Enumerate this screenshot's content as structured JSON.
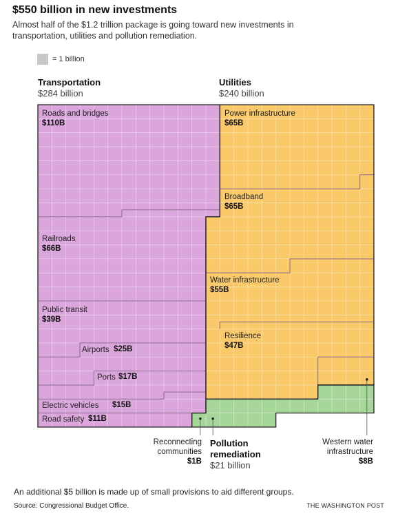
{
  "title": "$550 billion in new investments",
  "subtitle": "Almost half of the $1.2 trillion package is going toward new investments in transportation, utilities and pollution remediation.",
  "legend": {
    "label": "= 1 billion"
  },
  "categories": {
    "transportation": {
      "name": "Transportation",
      "total": "$284 billion"
    },
    "utilities": {
      "name": "Utilities",
      "total": "$240 billion"
    },
    "pollution": {
      "name": "Pollution remediation",
      "name_line1": "Pollution",
      "name_line2": "remediation",
      "total": "$21 billion"
    }
  },
  "colors": {
    "transportation": "#dba6dc",
    "utilities": "#f9c96a",
    "pollution": "#a7d69a",
    "grid": "#ffffff",
    "divider": "#8a6a8a",
    "outline": "#222222",
    "legend_swatch": "#c8c8c8"
  },
  "chart_data": {
    "type": "waffle",
    "unit": "$1 billion per square",
    "groups": [
      {
        "category": "Transportation",
        "total": 284,
        "items": [
          {
            "label": "Roads and bridges",
            "value": 110,
            "value_label": "$110B"
          },
          {
            "label": "Railroads",
            "value": 66,
            "value_label": "$66B"
          },
          {
            "label": "Public transit",
            "value": 39,
            "value_label": "$39B"
          },
          {
            "label": "Airports",
            "value": 25,
            "value_label": "$25B"
          },
          {
            "label": "Ports",
            "value": 17,
            "value_label": "$17B"
          },
          {
            "label": "Electric vehicles",
            "value": 15,
            "value_label": "$15B"
          },
          {
            "label": "Road safety",
            "value": 11,
            "value_label": "$11B"
          },
          {
            "label": "Reconnecting communities",
            "label_line1": "Reconnecting",
            "label_line2": "communities",
            "value": 1,
            "value_label": "$1B"
          }
        ]
      },
      {
        "category": "Utilities",
        "total": 240,
        "items": [
          {
            "label": "Power infrastructure",
            "value": 65,
            "value_label": "$65B"
          },
          {
            "label": "Broadband",
            "value": 65,
            "value_label": "$65B"
          },
          {
            "label": "Water infrastructure",
            "value": 55,
            "value_label": "$55B"
          },
          {
            "label": "Resilience",
            "value": 47,
            "value_label": "$47B"
          },
          {
            "label": "Western water infrastructure",
            "label_line1": "Western water",
            "label_line2": "infrastructure",
            "value": 8,
            "value_label": "$8B"
          }
        ]
      },
      {
        "category": "Pollution remediation",
        "total": 21,
        "items": [
          {
            "label": "Pollution remediation",
            "value": 21,
            "value_label": "$21 billion"
          }
        ]
      }
    ]
  },
  "footer": {
    "note": "An additional $5 billion is made up of small provisions to aid different groups.",
    "source": "Source: Congressional Budget Office.",
    "credit": "THE WASHINGTON POST"
  }
}
